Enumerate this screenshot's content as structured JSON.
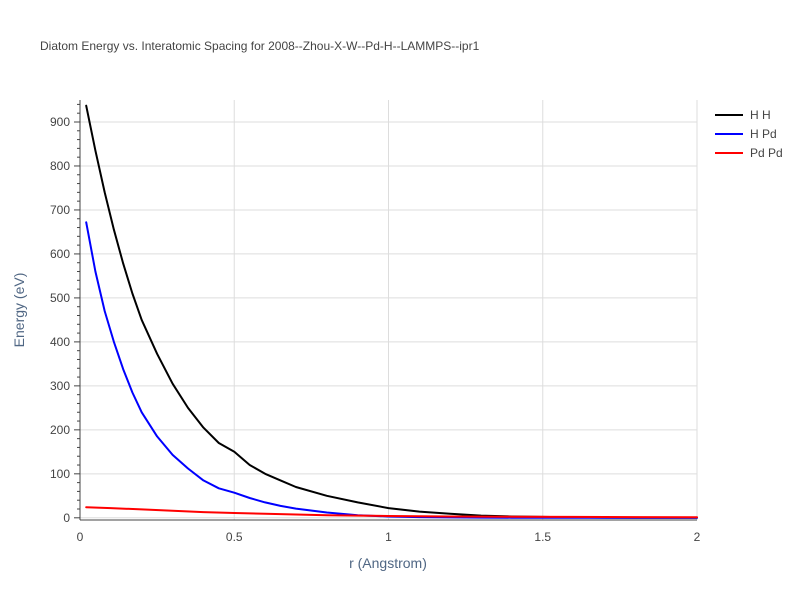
{
  "chart_data": {
    "type": "line",
    "title": "Diatom Energy vs. Interatomic Spacing for 2008--Zhou-X-W--Pd-H--LAMMPS--ipr1",
    "xlabel": "r (Angstrom)",
    "ylabel": "Energy (eV)",
    "xlim": [
      0,
      2
    ],
    "ylim": [
      -5,
      950
    ],
    "x_ticks": [
      0,
      0.5,
      1,
      1.5,
      2
    ],
    "x_tick_labels": [
      "0",
      "0.5",
      "1",
      "1.5",
      "2"
    ],
    "y_ticks": [
      0,
      100,
      200,
      300,
      400,
      500,
      600,
      700,
      800,
      900
    ],
    "y_tick_labels": [
      "0",
      "100",
      "200",
      "300",
      "400",
      "500",
      "600",
      "700",
      "800",
      "900"
    ],
    "grid": true,
    "legend_position": "top-right",
    "series": [
      {
        "name": "H H",
        "color": "#000000",
        "x": [
          0.02,
          0.05,
          0.08,
          0.11,
          0.14,
          0.17,
          0.2,
          0.25,
          0.3,
          0.35,
          0.4,
          0.45,
          0.5,
          0.55,
          0.6,
          0.65,
          0.7,
          0.8,
          0.9,
          1.0,
          1.1,
          1.2,
          1.3,
          1.4,
          1.5,
          1.6,
          1.7,
          1.8,
          1.9,
          2.0
        ],
        "y": [
          937,
          835,
          740,
          655,
          578,
          510,
          450,
          373,
          305,
          250,
          205,
          170,
          150,
          120,
          100,
          85,
          70,
          50,
          35,
          22,
          14,
          9,
          5,
          3,
          2,
          1,
          0.5,
          0.3,
          0.2,
          0.1
        ]
      },
      {
        "name": "H Pd",
        "color": "#0000ff",
        "x": [
          0.02,
          0.05,
          0.08,
          0.11,
          0.14,
          0.17,
          0.2,
          0.25,
          0.3,
          0.35,
          0.4,
          0.45,
          0.5,
          0.55,
          0.6,
          0.65,
          0.7,
          0.8,
          0.9,
          1.0,
          1.1,
          1.2,
          1.3,
          1.4,
          1.5,
          1.6,
          1.7,
          1.8,
          1.9,
          2.0
        ],
        "y": [
          672,
          560,
          470,
          400,
          338,
          285,
          240,
          185,
          143,
          112,
          85,
          67,
          57,
          45,
          35,
          27,
          21,
          12,
          6,
          3,
          1.5,
          0.8,
          0.4,
          0.2,
          0.1,
          0,
          0,
          0,
          0,
          0
        ]
      },
      {
        "name": "Pd Pd",
        "color": "#ff0000",
        "x": [
          0.02,
          0.1,
          0.2,
          0.3,
          0.4,
          0.5,
          0.6,
          0.7,
          0.8,
          0.9,
          1.0,
          1.2,
          1.4,
          1.6,
          1.8,
          2.0
        ],
        "y": [
          24,
          22,
          19,
          16,
          13,
          11,
          9,
          7.5,
          6,
          5,
          4,
          3,
          2.5,
          2,
          1.6,
          1.3
        ]
      }
    ]
  }
}
